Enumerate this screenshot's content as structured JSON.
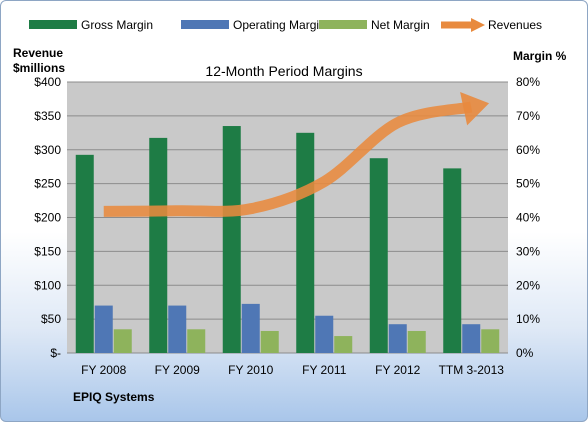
{
  "chart_data": {
    "type": "bar",
    "title": "12-Month Period Margins",
    "categories": [
      "FY 2008",
      "FY 2009",
      "FY 2010",
      "FY 2011",
      "FY 2012",
      "TTM 3-2013"
    ],
    "series": [
      {
        "name": "Gross Margin",
        "axis": "right",
        "unit": "%",
        "values": [
          58.5,
          63.5,
          67,
          65,
          57.5,
          54.5
        ],
        "color": "#1e7c45"
      },
      {
        "name": "Operating Margin",
        "axis": "right",
        "unit": "%",
        "values": [
          14,
          14,
          14.5,
          11,
          8.5,
          8.5
        ],
        "color": "#4f77b5"
      },
      {
        "name": "Net Margin",
        "axis": "right",
        "unit": "%",
        "values": [
          7,
          7,
          6.5,
          5,
          6.5,
          7
        ],
        "color": "#8eb35c"
      }
    ],
    "revenues": {
      "name": "Revenues",
      "axis": "left",
      "unit": "$millions",
      "values": [
        209,
        210,
        213,
        253,
        340,
        363
      ],
      "color": "#e88a3e"
    },
    "left_axis": {
      "label_line1": "Revenue",
      "label_line2": "$millions",
      "range": [
        0,
        400
      ],
      "ticks": [
        "$-",
        "$50",
        "$100",
        "$150",
        "$200",
        "$250",
        "$300",
        "$350",
        "$400"
      ]
    },
    "right_axis": {
      "label": "Margin %",
      "range": [
        0,
        80
      ],
      "ticks": [
        "0%",
        "10%",
        "20%",
        "30%",
        "40%",
        "50%",
        "60%",
        "70%",
        "80%"
      ]
    },
    "plot_background": "#c9c9c9",
    "grid": true,
    "legend": "top",
    "footer": "EPIQ Systems"
  }
}
